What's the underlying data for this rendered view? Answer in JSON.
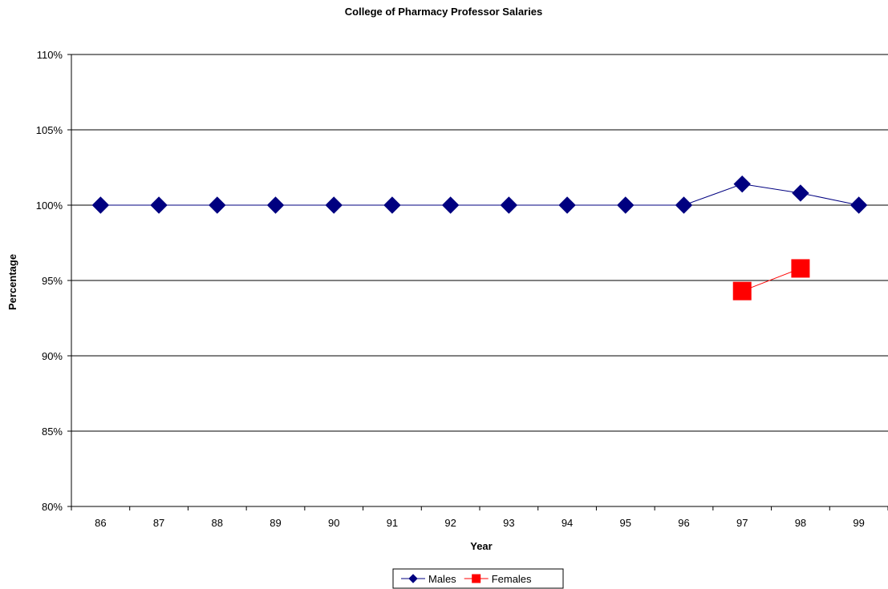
{
  "chart_data": {
    "type": "line",
    "title": "College of Pharmacy Professor Salaries",
    "xlabel": "Year",
    "ylabel": "Percentage",
    "categories": [
      "86",
      "87",
      "88",
      "89",
      "90",
      "91",
      "92",
      "93",
      "94",
      "95",
      "96",
      "97",
      "98",
      "99"
    ],
    "ylim": [
      80,
      110
    ],
    "ytick_values": [
      80,
      85,
      90,
      95,
      100,
      105,
      110
    ],
    "ytick_labels": [
      "80%",
      "85%",
      "90%",
      "95%",
      "100%",
      "105%",
      "110%"
    ],
    "grid": true,
    "legend_position": "bottom",
    "series": [
      {
        "name": "Males",
        "color": "#000080",
        "marker": "diamond",
        "values": [
          100,
          100,
          100,
          100,
          100,
          100,
          100,
          100,
          100,
          100,
          100,
          101.4,
          100.8,
          100
        ]
      },
      {
        "name": "Females",
        "color": "#FF0000",
        "marker": "square",
        "values": [
          null,
          null,
          null,
          null,
          null,
          null,
          null,
          null,
          null,
          null,
          null,
          94.3,
          95.8,
          null
        ]
      }
    ]
  }
}
